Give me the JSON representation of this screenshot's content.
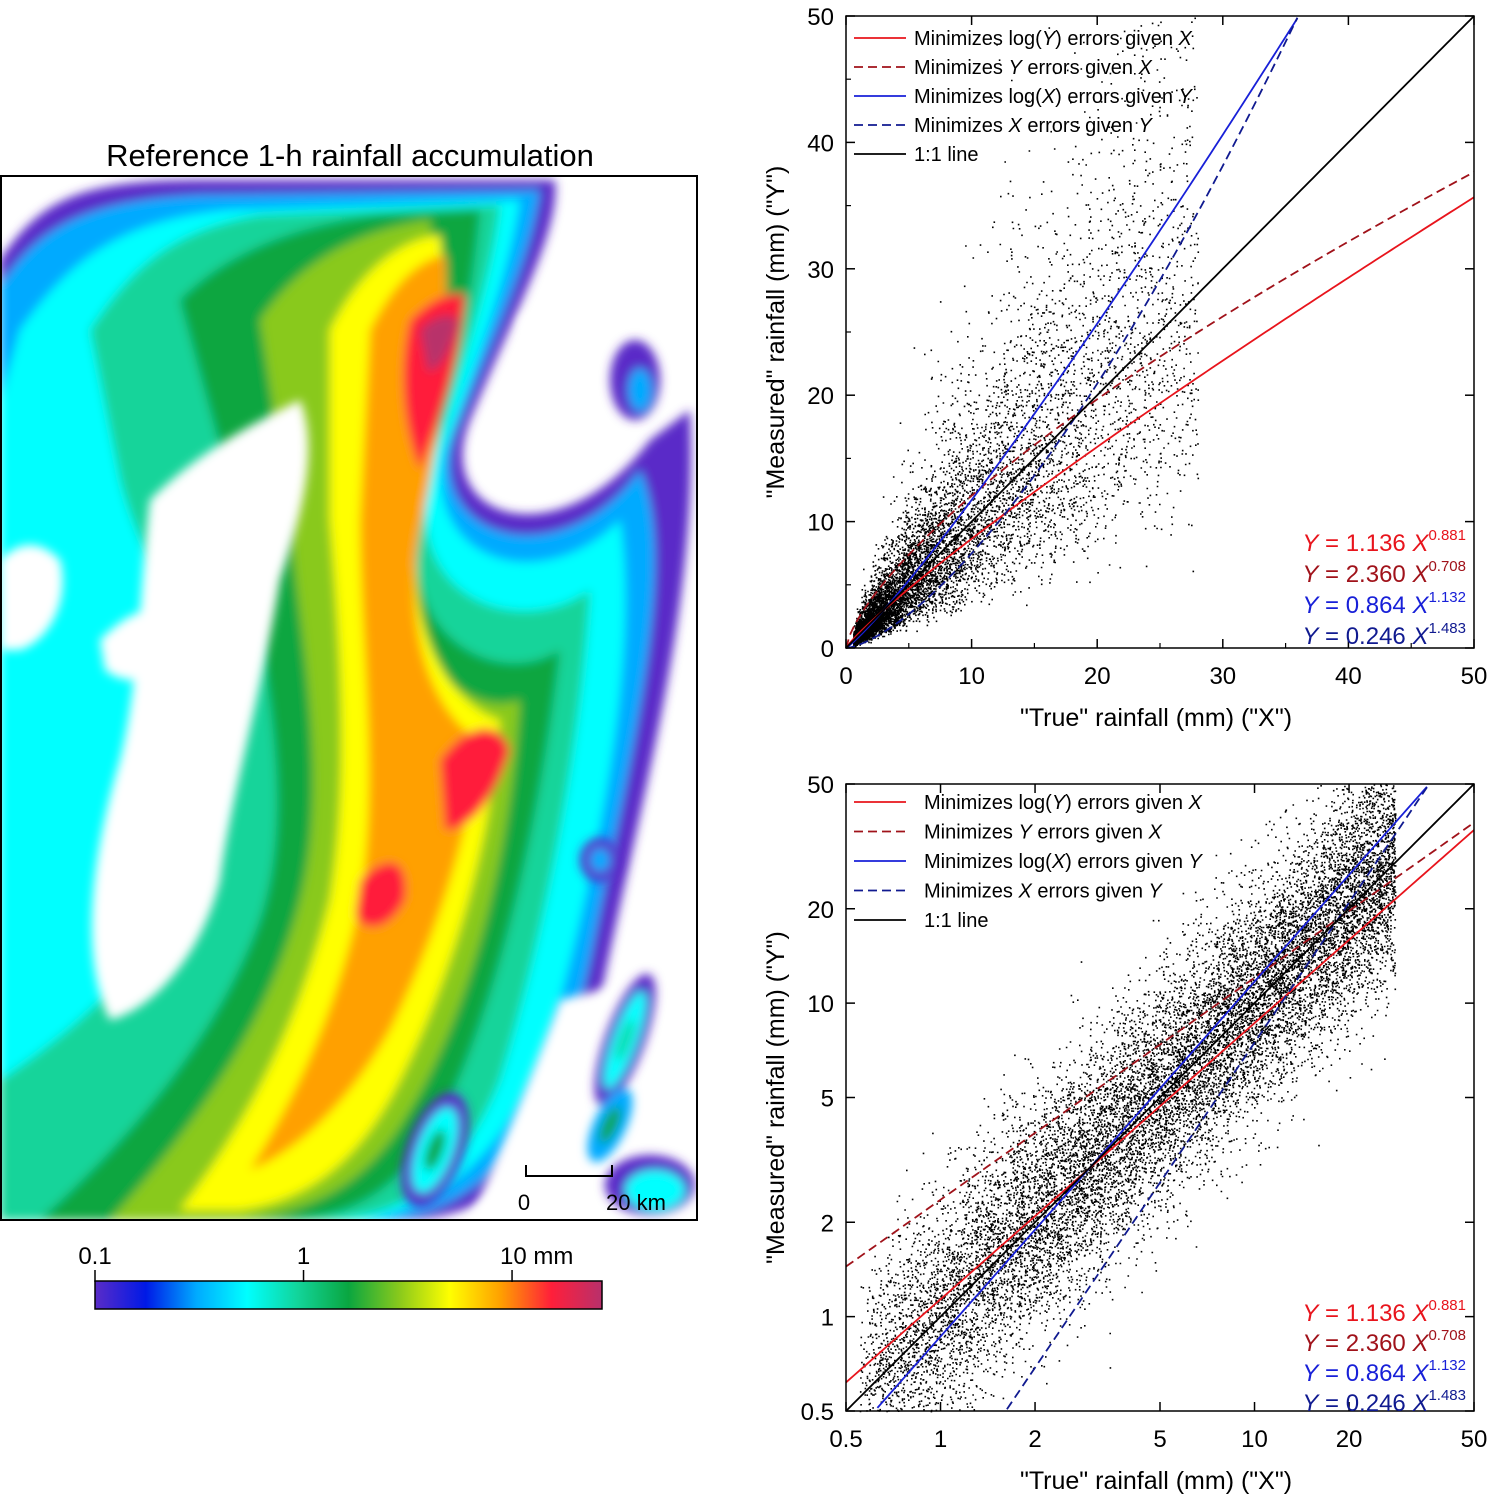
{
  "map": {
    "title": "Reference 1-h rainfall accumulation",
    "scale_bar": {
      "start_label": "0",
      "end_label": "20 km"
    },
    "colorbar": {
      "tick_labels": [
        "0.1",
        "1",
        "10 mm"
      ],
      "tick_values": [
        0.1,
        1,
        10
      ],
      "range": [
        0.1,
        27
      ],
      "scale": "log",
      "colors": [
        "#5a2cc8",
        "#0019e6",
        "#00aaff",
        "#00ffff",
        "#12d49a",
        "#0aa640",
        "#89c91c",
        "#ffff00",
        "#ffa000",
        "#ff1f3a",
        "#b8306b"
      ]
    }
  },
  "chart_data": [
    {
      "type": "scatter",
      "scale": "linear",
      "xlabel": "\"True\" rainfall (mm) (\"X\")",
      "ylabel": "\"Measured\" rainfall (mm) (\"Y\")",
      "xlim": [
        0,
        50
      ],
      "ylim": [
        0,
        50
      ],
      "xticks": [
        0,
        10,
        20,
        30,
        40,
        50
      ],
      "yticks": [
        0,
        10,
        20,
        30,
        40,
        50
      ],
      "grid": false,
      "legend_position": "top-left",
      "series": [
        {
          "name": "Minimizes log(Y) errors given X",
          "name_parts": [
            "Minimizes log(",
            "Y",
            ") errors given ",
            "X"
          ],
          "a": 1.136,
          "b": 0.881,
          "color": "#e8141c",
          "dash": "solid"
        },
        {
          "name": "Minimizes Y errors given X",
          "name_parts": [
            "Minimizes ",
            "Y",
            " errors given ",
            "X"
          ],
          "a": 2.36,
          "b": 0.708,
          "color": "#a0121a",
          "dash": "dashed"
        },
        {
          "name": "Minimizes log(X) errors given Y",
          "name_parts": [
            "Minimizes log(",
            "X",
            ") errors given ",
            "Y"
          ],
          "a": 0.864,
          "b": 1.132,
          "color": "#1820d8",
          "dash": "solid"
        },
        {
          "name": "Minimizes X errors given Y",
          "name_parts": [
            "Minimizes ",
            "X",
            " errors given ",
            "Y"
          ],
          "a": 0.246,
          "b": 1.483,
          "color": "#101a90",
          "dash": "dashed"
        },
        {
          "name": "1:1 line",
          "name_parts": [
            "1:1 line"
          ],
          "a": 1,
          "b": 1,
          "color": "#000000",
          "dash": "solid"
        }
      ],
      "equations": [
        {
          "lhs": "Y",
          "mid": " = 1.136 ",
          "var": "X",
          "exp": "0.881",
          "color": "#e8141c"
        },
        {
          "lhs": "Y",
          "mid": " = 2.360 ",
          "var": "X",
          "exp": "0.708",
          "color": "#a0121a"
        },
        {
          "lhs": "Y",
          "mid": " = 0.864 ",
          "var": "X",
          "exp": "1.132",
          "color": "#1820d8"
        },
        {
          "lhs": "Y",
          "mid": " = 0.246 ",
          "var": "X",
          "exp": "1.483",
          "color": "#101a90"
        }
      ]
    },
    {
      "type": "scatter",
      "scale": "log",
      "xlabel": "\"True\" rainfall (mm) (\"X\")",
      "ylabel": "\"Measured\" rainfall (mm) (\"Y\")",
      "xlim": [
        0.5,
        50
      ],
      "ylim": [
        0.5,
        50
      ],
      "xticks": [
        0.5,
        1,
        2,
        5,
        10,
        20,
        50
      ],
      "yticks": [
        0.5,
        1,
        2,
        5,
        10,
        20,
        50
      ],
      "grid": false,
      "legend_position": "top-left",
      "series": [
        {
          "name": "Minimizes log(Y) errors given X",
          "name_parts": [
            "Minimizes log(",
            "Y",
            ") errors given ",
            "X"
          ],
          "a": 1.136,
          "b": 0.881,
          "color": "#e8141c",
          "dash": "solid"
        },
        {
          "name": "Minimizes Y errors given X",
          "name_parts": [
            "Minimizes ",
            "Y",
            " errors given ",
            "X"
          ],
          "a": 2.36,
          "b": 0.708,
          "color": "#a0121a",
          "dash": "dashed"
        },
        {
          "name": "Minimizes log(X) errors given Y",
          "name_parts": [
            "Minimizes log(",
            "X",
            ") errors given ",
            "Y"
          ],
          "a": 0.864,
          "b": 1.132,
          "color": "#1820d8",
          "dash": "solid"
        },
        {
          "name": "Minimizes X errors given Y",
          "name_parts": [
            "Minimizes ",
            "X",
            " errors given ",
            "Y"
          ],
          "a": 0.246,
          "b": 1.483,
          "color": "#101a90",
          "dash": "dashed"
        },
        {
          "name": "1:1 line",
          "name_parts": [
            "1:1 line"
          ],
          "a": 1,
          "b": 1,
          "color": "#000000",
          "dash": "solid"
        }
      ],
      "equations": [
        {
          "lhs": "Y",
          "mid": " = 1.136 ",
          "var": "X",
          "exp": "0.881",
          "color": "#e8141c"
        },
        {
          "lhs": "Y",
          "mid": " = 2.360 ",
          "var": "X",
          "exp": "0.708",
          "color": "#a0121a"
        },
        {
          "lhs": "Y",
          "mid": " = 0.864 ",
          "var": "X",
          "exp": "1.132",
          "color": "#1820d8"
        },
        {
          "lhs": "Y",
          "mid": " = 0.246 ",
          "var": "X",
          "exp": "1.483",
          "color": "#101a90"
        }
      ]
    }
  ]
}
